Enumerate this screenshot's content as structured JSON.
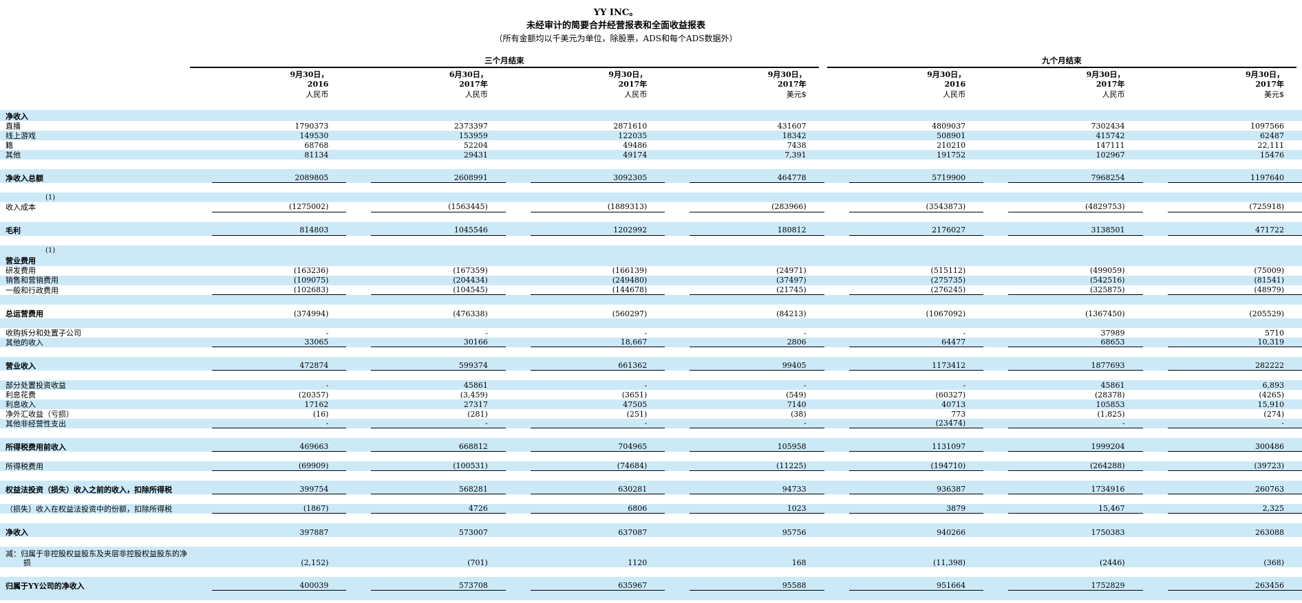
{
  "title": {
    "company": "YY INC。",
    "statement": "未经审计的简要合并经营报表和全面收益报表",
    "note": "（所有金额均以千美元为单位，除股票，ADS和每个ADS数据外）"
  },
  "colors": {
    "row_stripe_blue": "#cce9f8",
    "text": "#000000",
    "rule_line": "#000000"
  },
  "groups": [
    {
      "label": "三个月结束",
      "columns": 4
    },
    {
      "label": "九个月结束",
      "columns": 3
    }
  ],
  "columns": [
    {
      "date": "9月30日，",
      "year": "2016",
      "currency": "人民币"
    },
    {
      "date": "6月30日，",
      "year": "2017年",
      "currency": "人民币"
    },
    {
      "date": "9月30日，",
      "year": "2017年",
      "currency": "人民币"
    },
    {
      "date": "9月30日，",
      "year": "2017年",
      "currency": "美元$"
    },
    {
      "date": "9月30日，",
      "year": "2016",
      "currency": "人民币"
    },
    {
      "date": "9月30日，",
      "year": "2017年",
      "currency": "人民币"
    },
    {
      "date": "9月30日，",
      "year": "2017年",
      "currency": "美元$"
    }
  ],
  "rows": [
    {
      "type": "section",
      "bold": true,
      "bg": "blue",
      "label": "净收入"
    },
    {
      "type": "item",
      "bg": "white",
      "label": "直播",
      "values": [
        "1790373",
        "2373397",
        "2871610",
        "431607",
        "4809037",
        "7302434",
        "1097566"
      ]
    },
    {
      "type": "item",
      "bg": "blue",
      "label": "线上游戏",
      "values": [
        "149530",
        "153959",
        "122035",
        "18342",
        "508901",
        "415742",
        "62487"
      ]
    },
    {
      "type": "item",
      "bg": "white",
      "label": "籍",
      "values": [
        "68768",
        "52204",
        "49486",
        "7438",
        "210210",
        "147111",
        "22,111"
      ]
    },
    {
      "type": "item",
      "bg": "blue",
      "label": "其他",
      "values": [
        "81134",
        "29431",
        "49174",
        "7,391",
        "191752",
        "102967",
        "15476"
      ]
    },
    {
      "type": "spacer",
      "bg": "white"
    },
    {
      "type": "total",
      "bold": true,
      "bg": "blue",
      "underline": true,
      "label": "净收入总额",
      "values": [
        "2089805",
        "2608991",
        "3092305",
        "464778",
        "5719900",
        "7968254",
        "1197640"
      ]
    },
    {
      "type": "spacer",
      "bg": "white"
    },
    {
      "type": "note",
      "bg": "blue",
      "label": "(1)"
    },
    {
      "type": "item",
      "bg": "white",
      "underline": true,
      "label": "收入成本",
      "values": [
        "(1275002)",
        "(1563445)",
        "(1889313)",
        "(283966)",
        "(3543873)",
        "(4829753)",
        "(725918)"
      ]
    },
    {
      "type": "spacer",
      "bg": "white"
    },
    {
      "type": "total",
      "bold": true,
      "bg": "blue",
      "underline": true,
      "label": "毛利",
      "values": [
        "814803",
        "1045546",
        "1202992",
        "180812",
        "2176027",
        "3138501",
        "471722"
      ]
    },
    {
      "type": "spacer",
      "bg": "white"
    },
    {
      "type": "note",
      "bg": "blue",
      "label": "(1)"
    },
    {
      "type": "section",
      "bold": true,
      "bg": "blue",
      "label": "营业费用"
    },
    {
      "type": "item",
      "bg": "white",
      "label": "研发费用",
      "values": [
        "(163236)",
        "(167359)",
        "(166139)",
        "(24971)",
        "(515112)",
        "(499059)",
        "(75009)"
      ]
    },
    {
      "type": "item",
      "bg": "blue",
      "label": "销售和营销费用",
      "values": [
        "(109075)",
        "(204434)",
        "(249480)",
        "(37497)",
        "(275735)",
        "(542516)",
        "(81541)"
      ]
    },
    {
      "type": "item",
      "bg": "white",
      "underline": true,
      "label": "一般和行政费用",
      "values": [
        "(102683)",
        "(104545)",
        "(144678)",
        "(21745)",
        "(276245)",
        "(325875)",
        "(48979)"
      ]
    },
    {
      "type": "spacer",
      "bg": "blue"
    },
    {
      "type": "total",
      "bold": true,
      "bg": "white",
      "label": "总运营费用",
      "values": [
        "(374994)",
        "(476338)",
        "(560297)",
        "(84213)",
        "(1067092)",
        "(1367450)",
        "(205529)"
      ]
    },
    {
      "type": "spacer",
      "bg": "blue"
    },
    {
      "type": "item",
      "bg": "white",
      "label": "收购拆分和处置子公司",
      "values": [
        "-",
        "-",
        "-",
        "-",
        "-",
        "37989",
        "5710"
      ]
    },
    {
      "type": "item",
      "bg": "blue",
      "underline": true,
      "label": "其他的收入",
      "values": [
        "33065",
        "30166",
        "18,667",
        "2806",
        "64477",
        "68653",
        "10,319"
      ]
    },
    {
      "type": "spacer",
      "bg": "white"
    },
    {
      "type": "total",
      "bold": true,
      "bg": "blue",
      "underline": true,
      "label": "营业收入",
      "values": [
        "472874",
        "599374",
        "661362",
        "99405",
        "1173412",
        "1877693",
        "282222"
      ]
    },
    {
      "type": "spacer",
      "bg": "white"
    },
    {
      "type": "item",
      "bg": "blue",
      "label": "部分处置投资收益",
      "values": [
        "-",
        "45861",
        "-",
        "-",
        "-",
        "45861",
        "6,893"
      ]
    },
    {
      "type": "item",
      "bg": "white",
      "label": "利息花费",
      "values": [
        "(20357)",
        "(3,459)",
        "(3651)",
        "(549)",
        "(60327)",
        "(28378)",
        "(4265)"
      ]
    },
    {
      "type": "item",
      "bg": "blue",
      "label": "利息收入",
      "values": [
        "17162",
        "27317",
        "47505",
        "7140",
        "40713",
        "105853",
        "15,910"
      ]
    },
    {
      "type": "item",
      "bg": "white",
      "label": "净外汇收益（亏损）",
      "values": [
        "(16)",
        "(281)",
        "(251)",
        "(38)",
        "773",
        "(1,825)",
        "(274)"
      ]
    },
    {
      "type": "item",
      "bg": "blue",
      "underline": true,
      "label": "其他非经营性支出",
      "values": [
        "-",
        "-",
        "-",
        "-",
        "(23474)",
        "-",
        "-"
      ]
    },
    {
      "type": "spacer",
      "bg": "white"
    },
    {
      "type": "total",
      "bold": true,
      "bg": "blue",
      "underline": true,
      "label": "所得税费用前收入",
      "values": [
        "469663",
        "668812",
        "704965",
        "105958",
        "1131097",
        "1999204",
        "300486"
      ]
    },
    {
      "type": "spacer",
      "bg": "white"
    },
    {
      "type": "item",
      "bg": "blue",
      "underline": true,
      "label": "所得税费用",
      "values": [
        "(69909)",
        "(100531)",
        "(74684)",
        "(11225)",
        "(194710)",
        "(264288)",
        "(39723)"
      ]
    },
    {
      "type": "spacer",
      "bg": "white"
    },
    {
      "type": "total",
      "bold": true,
      "bg": "blue",
      "underline": true,
      "label": "权益法投资（损失）收入之前的收入，扣除所得税",
      "values": [
        "399754",
        "568281",
        "630281",
        "94733",
        "936387",
        "1734916",
        "260763"
      ]
    },
    {
      "type": "spacer",
      "bg": "white"
    },
    {
      "type": "item",
      "bg": "blue",
      "underline": true,
      "label": "（损失）收入在权益法投资中的份额，扣除所得税",
      "values": [
        "(1867)",
        "4726",
        "6806",
        "1023",
        "3879",
        "15,467",
        "2,325"
      ]
    },
    {
      "type": "spacer",
      "bg": "white"
    },
    {
      "type": "total",
      "bold": true,
      "bg": "blue",
      "label": "净收入",
      "values": [
        "397887",
        "573007",
        "637087",
        "95756",
        "940266",
        "1750383",
        "263088"
      ]
    },
    {
      "type": "spacer",
      "bg": "white"
    },
    {
      "type": "item2",
      "bg": "blue",
      "label": "减：归属于非控股权益股东及夹层非控股权益股东的净亏",
      "label2": "损",
      "values": [
        "(2,152)",
        "(701)",
        "1120",
        "168",
        "(11,398)",
        "(2446)",
        "(368)"
      ]
    },
    {
      "type": "spacer",
      "bg": "white"
    },
    {
      "type": "total",
      "bold": true,
      "bg": "blue",
      "underline": true,
      "label": "归属于YY公司的净收入",
      "values": [
        "400039",
        "573708",
        "635967",
        "95588",
        "951664",
        "1752829",
        "263456"
      ]
    },
    {
      "type": "spacer",
      "bg": "blue"
    }
  ]
}
